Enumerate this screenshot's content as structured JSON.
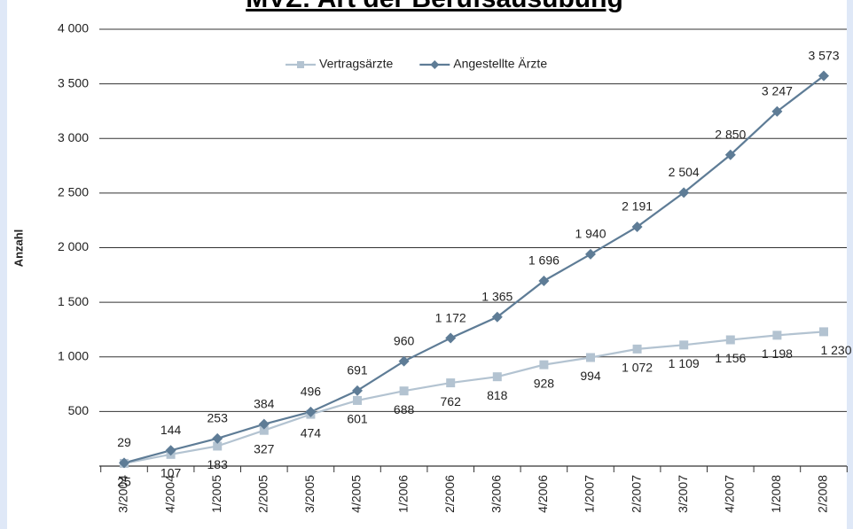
{
  "chart_data": {
    "type": "line",
    "title": "MVZ: Art der Berufsausübung",
    "y_label": "Anzahl",
    "categories": [
      "3/2004",
      "4/2004",
      "1/2005",
      "2/2005",
      "3/2005",
      "4/2005",
      "1/2006",
      "2/2006",
      "3/2006",
      "4/2006",
      "1/2007",
      "2/2007",
      "3/2007",
      "4/2007",
      "1/2008",
      "2/2008"
    ],
    "series": [
      {
        "name": "Vertragsärzte",
        "color": "#b3c3d1",
        "marker": "square",
        "values": [
          25,
          107,
          183,
          327,
          474,
          601,
          688,
          762,
          818,
          928,
          994,
          1072,
          1109,
          1156,
          1198,
          1230
        ],
        "value_labels": [
          "25",
          "107",
          "183",
          "327",
          "474",
          "601",
          "688",
          "762",
          "818",
          "928",
          "994",
          "1 072",
          "1 109",
          "1 156",
          "1 198",
          "1 230"
        ]
      },
      {
        "name": "Angestellte Ärzte",
        "color": "#5e7c96",
        "marker": "diamond",
        "values": [
          29,
          144,
          253,
          384,
          496,
          691,
          960,
          1172,
          1365,
          1696,
          1940,
          2191,
          2504,
          2850,
          3247,
          3573
        ],
        "value_labels": [
          "29",
          "144",
          "253",
          "384",
          "496",
          "691",
          "960",
          "1 172",
          "1 365",
          "1 696",
          "1 940",
          "2 191",
          "2 504",
          "2 850",
          "3 247",
          "3 573"
        ]
      }
    ],
    "ylim": [
      0,
      4000
    ],
    "yticks": [
      500,
      {
        "value": 1000,
        "label": "1 000"
      },
      {
        "value": 1500,
        "label": "1 500"
      },
      {
        "value": 2000,
        "label": "2 000"
      },
      {
        "value": 2500,
        "label": "2 500"
      },
      {
        "value": 3000,
        "label": "3 000"
      },
      {
        "value": 3500,
        "label": "3 500"
      },
      {
        "value": 4000,
        "label": "4 000"
      }
    ],
    "grid": true,
    "legend": "top"
  }
}
